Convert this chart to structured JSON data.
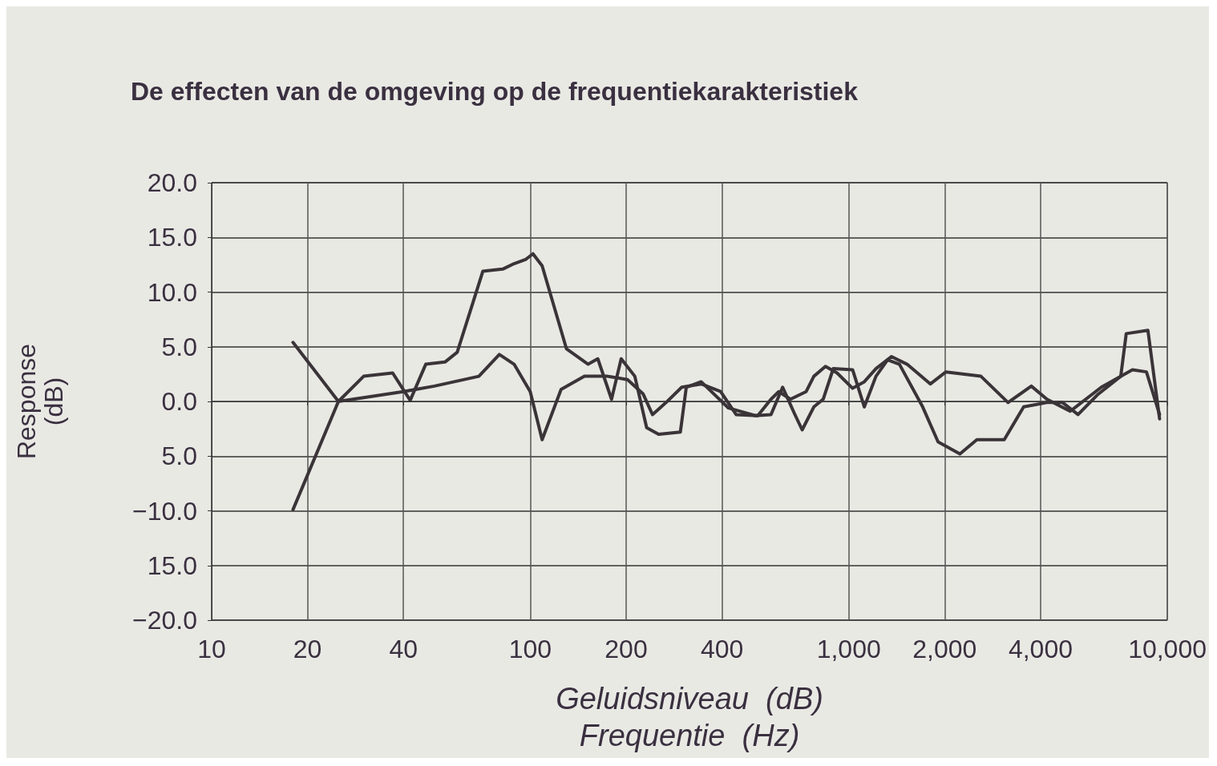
{
  "chart_data": {
    "type": "line",
    "title": "De effecten van de omgeving op de frequentiekarakteristiek",
    "xlabel": "Geluidsniveau  (dB)\nFrequentie  (Hz)",
    "ylabel": "Response\n(dB)",
    "log": "x",
    "grid": true,
    "marker": "none",
    "line_style": "solid",
    "xlim": [
      10,
      10000
    ],
    "xticks": [
      10,
      20,
      40,
      100,
      200,
      400,
      {
        "value": 1000,
        "label": "1,000"
      },
      {
        "value": 2000,
        "label": "2,000"
      },
      {
        "value": 4000,
        "label": "4,000"
      },
      {
        "value": 10000,
        "label": "10,000"
      }
    ],
    "ylim": [
      -20,
      20
    ],
    "yticks": [
      {
        "value": 20,
        "label": "20.0"
      },
      {
        "value": 15,
        "label": "15.0"
      },
      {
        "value": 10,
        "label": "10.0"
      },
      {
        "value": 5,
        "label": "5.0"
      },
      {
        "value": 0,
        "label": "0.0"
      },
      {
        "value": -5,
        "label": "5.0"
      },
      {
        "value": -10,
        "label": "−10.0"
      },
      {
        "value": -15,
        "label": "15.0"
      },
      {
        "value": -20,
        "label": "−20.0"
      }
    ],
    "series": [
      {
        "color": "#3a3438",
        "x": [
          18,
          25,
          40,
          50,
          69,
          80,
          89,
          100,
          109,
          125,
          148,
          175,
          202,
          226,
          242,
          267,
          299,
          344,
          396,
          443,
          518,
          570,
          603,
          656,
          735,
          777,
          845,
          919,
          1028,
          1119,
          1217,
          1361,
          1524,
          1804,
          2018,
          2599,
          3162,
          3741,
          4188,
          4955,
          6206,
          7770,
          8597,
          9455
        ],
        "values": [
          5.4,
          0,
          0.9,
          1.4,
          2.3,
          4.3,
          3.4,
          0.9,
          -3.5,
          1.1,
          2.3,
          2.3,
          2.0,
          0.7,
          -1.2,
          -0.1,
          1.3,
          1.6,
          0.9,
          -1.2,
          -1.3,
          0.2,
          0.9,
          0.2,
          0.9,
          2.3,
          3.2,
          2.6,
          1.2,
          1.8,
          3.0,
          4.1,
          3.4,
          1.6,
          2.7,
          2.3,
          -0.1,
          1.4,
          0.2,
          -0.9,
          1.3,
          2.9,
          2.7,
          -1.2
        ]
      },
      {
        "color": "#3a3438",
        "x": [
          18,
          25,
          30,
          37,
          42,
          47,
          54,
          59,
          71,
          82,
          89,
          97,
          102,
          109,
          130,
          152,
          163,
          180,
          193,
          213,
          232,
          253,
          296,
          309,
          344,
          419,
          509,
          570,
          620,
          675,
          714,
          777,
          831,
          894,
          1028,
          1119,
          1217,
          1324,
          1442,
          1706,
          1907,
          2233,
          2524,
          3076,
          3540,
          4188,
          4688,
          5244,
          6031,
          7141,
          7430,
          8690,
          9455
        ],
        "values": [
          -9.9,
          0,
          2.3,
          2.6,
          0.1,
          3.4,
          3.6,
          4.5,
          11.9,
          12.1,
          12.6,
          13.0,
          13.5,
          12.4,
          4.8,
          3.4,
          3.9,
          0.2,
          3.9,
          2.3,
          -2.4,
          -3.0,
          -2.8,
          1.3,
          1.8,
          -0.6,
          -1.3,
          -1.2,
          1.3,
          -1.1,
          -2.6,
          -0.5,
          0.2,
          3.0,
          2.9,
          -0.5,
          2.3,
          3.8,
          3.4,
          -0.5,
          -3.7,
          -4.8,
          -3.5,
          -3.5,
          -0.5,
          -0.1,
          -0.1,
          -1.2,
          0.6,
          2.3,
          6.2,
          6.5,
          -1.6
        ]
      }
    ]
  }
}
